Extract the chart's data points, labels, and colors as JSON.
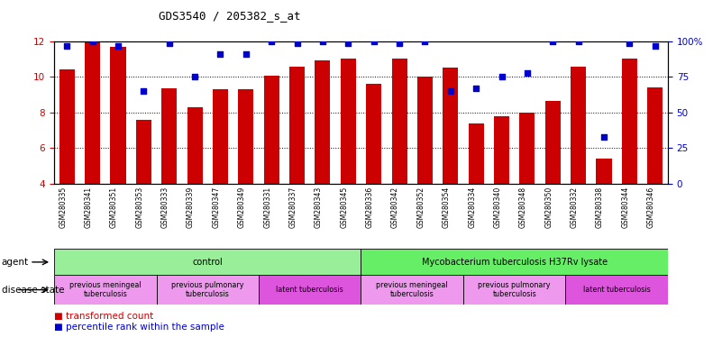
{
  "title": "GDS3540 / 205382_s_at",
  "samples": [
    "GSM280335",
    "GSM280341",
    "GSM280351",
    "GSM280353",
    "GSM280333",
    "GSM280339",
    "GSM280347",
    "GSM280349",
    "GSM280331",
    "GSM280337",
    "GSM280343",
    "GSM280345",
    "GSM280336",
    "GSM280342",
    "GSM280352",
    "GSM280354",
    "GSM280334",
    "GSM280340",
    "GSM280348",
    "GSM280350",
    "GSM280332",
    "GSM280338",
    "GSM280344",
    "GSM280346"
  ],
  "bar_values": [
    10.45,
    11.95,
    11.7,
    7.6,
    9.35,
    8.3,
    9.3,
    9.3,
    10.05,
    10.6,
    10.95,
    11.05,
    9.6,
    11.05,
    10.0,
    10.55,
    7.4,
    7.8,
    8.0,
    8.65,
    10.6,
    5.4,
    11.05,
    9.4
  ],
  "dot_values": [
    97,
    100,
    97,
    65,
    99,
    75,
    91,
    91,
    100,
    99,
    100,
    99,
    100,
    99,
    100,
    65,
    67,
    75,
    78,
    100,
    100,
    33,
    99,
    97
  ],
  "bar_color": "#cc0000",
  "dot_color": "#0000cc",
  "ylim_left": [
    4,
    12
  ],
  "ylim_right": [
    0,
    100
  ],
  "yticks_left": [
    4,
    6,
    8,
    10,
    12
  ],
  "yticks_right": [
    0,
    25,
    50,
    75,
    100
  ],
  "yticklabels_right": [
    "0",
    "25",
    "50",
    "75",
    "100%"
  ],
  "grid_values": [
    6,
    8,
    10
  ],
  "agent_groups": [
    {
      "label": "control",
      "start": 0,
      "end": 11,
      "color": "#99ee99"
    },
    {
      "label": "Mycobacterium tuberculosis H37Rv lysate",
      "start": 12,
      "end": 23,
      "color": "#66ee66"
    }
  ],
  "disease_groups": [
    {
      "label": "previous meningeal\ntuberculosis",
      "start": 0,
      "end": 3,
      "color": "#ee99ee"
    },
    {
      "label": "previous pulmonary\ntuberculosis",
      "start": 4,
      "end": 7,
      "color": "#ee99ee"
    },
    {
      "label": "latent tuberculosis",
      "start": 8,
      "end": 11,
      "color": "#dd55dd"
    },
    {
      "label": "previous meningeal\ntuberculosis",
      "start": 12,
      "end": 15,
      "color": "#ee99ee"
    },
    {
      "label": "previous pulmonary\ntuberculosis",
      "start": 16,
      "end": 19,
      "color": "#ee99ee"
    },
    {
      "label": "latent tuberculosis",
      "start": 20,
      "end": 23,
      "color": "#dd55dd"
    }
  ],
  "legend_bar_label": "transformed count",
  "legend_dot_label": "percentile rank within the sample",
  "bg_color": "#ffffff",
  "xtick_bg_color": "#cccccc",
  "agent_label": "agent",
  "disease_label": "disease state"
}
